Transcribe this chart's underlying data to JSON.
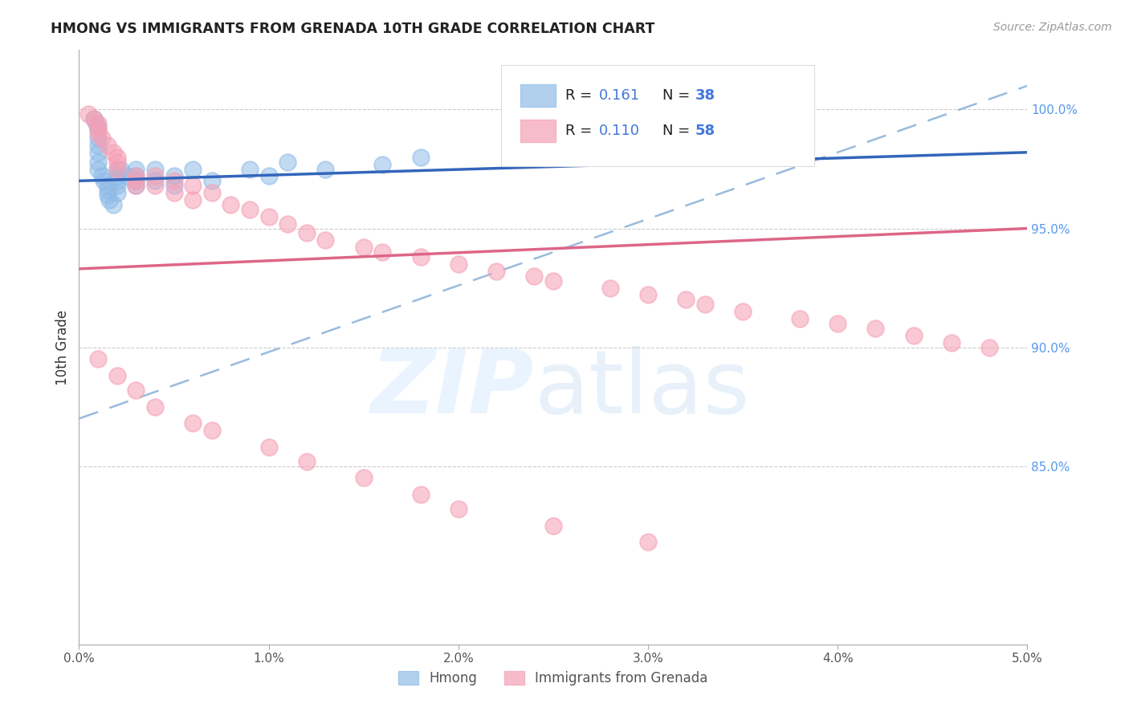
{
  "title": "HMONG VS IMMIGRANTS FROM GRENADA 10TH GRADE CORRELATION CHART",
  "source": "Source: ZipAtlas.com",
  "ylabel": "10th Grade",
  "x_range": [
    0.0,
    0.05
  ],
  "y_range": [
    0.775,
    1.025
  ],
  "hmong_color": "#90bce8",
  "grenada_color": "#f5a0b5",
  "trend_blue": "#3366bb",
  "trend_pink": "#dd6688",
  "trend_dashed_color": "#99bbdd",
  "watermark_zip": "ZIP",
  "watermark_atlas": "atlas",
  "hmong_x": [
    0.0008,
    0.0009,
    0.001,
    0.001,
    0.001,
    0.001,
    0.001,
    0.001,
    0.0012,
    0.0013,
    0.0015,
    0.0015,
    0.0015,
    0.0016,
    0.0018,
    0.002,
    0.002,
    0.002,
    0.002,
    0.002,
    0.0022,
    0.0025,
    0.003,
    0.003,
    0.003,
    0.003,
    0.004,
    0.004,
    0.005,
    0.005,
    0.006,
    0.007,
    0.009,
    0.01,
    0.011,
    0.013,
    0.016,
    0.018
  ],
  "hmong_y": [
    0.996,
    0.994,
    0.992,
    0.988,
    0.985,
    0.982,
    0.978,
    0.975,
    0.972,
    0.97,
    0.968,
    0.966,
    0.964,
    0.962,
    0.96,
    0.975,
    0.972,
    0.97,
    0.968,
    0.965,
    0.975,
    0.972,
    0.975,
    0.972,
    0.97,
    0.968,
    0.975,
    0.97,
    0.972,
    0.968,
    0.975,
    0.97,
    0.975,
    0.972,
    0.978,
    0.975,
    0.977,
    0.98
  ],
  "grenada_x": [
    0.0005,
    0.0008,
    0.001,
    0.001,
    0.001,
    0.0012,
    0.0015,
    0.0018,
    0.002,
    0.002,
    0.002,
    0.003,
    0.003,
    0.003,
    0.004,
    0.004,
    0.005,
    0.005,
    0.006,
    0.006,
    0.007,
    0.008,
    0.009,
    0.01,
    0.011,
    0.012,
    0.013,
    0.015,
    0.016,
    0.018,
    0.02,
    0.022,
    0.024,
    0.025,
    0.028,
    0.03,
    0.032,
    0.033,
    0.035,
    0.038,
    0.04,
    0.042,
    0.044,
    0.046,
    0.048,
    0.001,
    0.002,
    0.003,
    0.004,
    0.006,
    0.007,
    0.01,
    0.012,
    0.015,
    0.018,
    0.02,
    0.025,
    0.03
  ],
  "grenada_y": [
    0.998,
    0.996,
    0.994,
    0.992,
    0.99,
    0.988,
    0.985,
    0.982,
    0.98,
    0.978,
    0.975,
    0.972,
    0.97,
    0.968,
    0.972,
    0.968,
    0.97,
    0.965,
    0.968,
    0.962,
    0.965,
    0.96,
    0.958,
    0.955,
    0.952,
    0.948,
    0.945,
    0.942,
    0.94,
    0.938,
    0.935,
    0.932,
    0.93,
    0.928,
    0.925,
    0.922,
    0.92,
    0.918,
    0.915,
    0.912,
    0.91,
    0.908,
    0.905,
    0.902,
    0.9,
    0.895,
    0.888,
    0.882,
    0.875,
    0.868,
    0.865,
    0.858,
    0.852,
    0.845,
    0.838,
    0.832,
    0.825,
    0.818
  ],
  "blue_trend_x": [
    0.0,
    0.05
  ],
  "blue_trend_y": [
    0.97,
    0.982
  ],
  "pink_trend_x": [
    0.0,
    0.05
  ],
  "pink_trend_y": [
    0.933,
    0.95
  ],
  "dashed_trend_x": [
    0.0,
    0.05
  ],
  "dashed_trend_y": [
    0.87,
    1.01
  ],
  "y_ticks": [
    1.0,
    0.95,
    0.9,
    0.85
  ],
  "y_tick_labels": [
    "100.0%",
    "95.0%",
    "90.0%",
    "85.0%"
  ]
}
